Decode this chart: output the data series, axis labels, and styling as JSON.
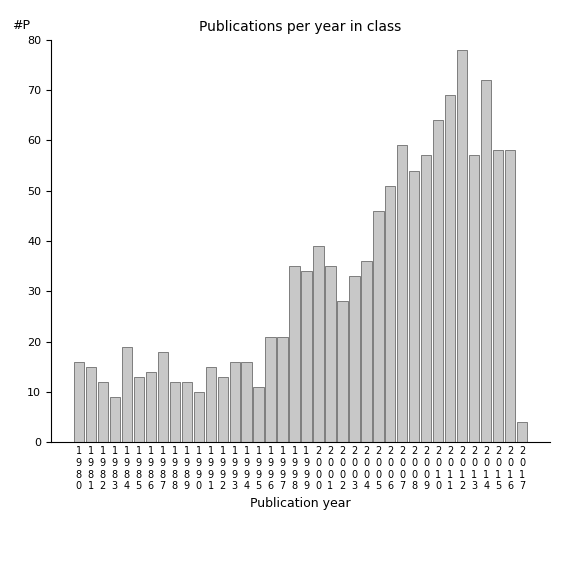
{
  "title": "Publications per year in class",
  "xlabel": "Publication year",
  "ylabel": "#P",
  "bar_color": "#c8c8c8",
  "edge_color": "#555555",
  "background_color": "#ffffff",
  "ylim": [
    0,
    80
  ],
  "yticks": [
    0,
    10,
    20,
    30,
    40,
    50,
    60,
    70,
    80
  ],
  "years": [
    1980,
    1981,
    1982,
    1983,
    1984,
    1985,
    1986,
    1987,
    1988,
    1989,
    1990,
    1991,
    1992,
    1993,
    1994,
    1995,
    1996,
    1997,
    1998,
    1999,
    2000,
    2001,
    2002,
    2003,
    2004,
    2005,
    2006,
    2007,
    2008,
    2009,
    2010,
    2011,
    2012,
    2013,
    2014,
    2015,
    2016,
    2017
  ],
  "values": [
    16,
    15,
    12,
    9,
    19,
    13,
    14,
    18,
    12,
    12,
    10,
    15,
    13,
    16,
    16,
    11,
    21,
    21,
    35,
    34,
    39,
    35,
    28,
    33,
    36,
    46,
    51,
    59,
    54,
    57,
    64,
    69,
    78,
    57,
    72,
    58,
    58,
    4
  ]
}
